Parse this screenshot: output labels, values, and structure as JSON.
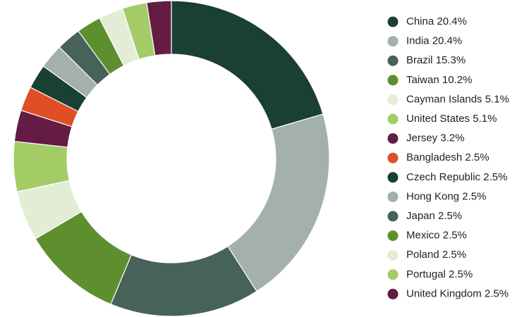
{
  "chart_data": {
    "type": "donut",
    "categories": [
      "China",
      "India",
      "Brazil",
      "Taiwan",
      "Cayman Islands",
      "United States",
      "Jersey",
      "Bangladesh",
      "Czech Republic",
      "Hong Kong",
      "Japan",
      "Mexico",
      "Poland",
      "Portugal",
      "United Kingdom"
    ],
    "values": [
      20.4,
      20.4,
      15.3,
      10.2,
      5.1,
      5.1,
      3.2,
      2.5,
      2.5,
      2.5,
      2.5,
      2.5,
      2.5,
      2.5,
      2.5
    ],
    "value_labels": [
      "20.4%",
      "20.4%",
      "15.3%",
      "10.2%",
      "5.1%",
      "5.1%",
      "3.2%",
      "2.5%",
      "2.5%",
      "2.5%",
      "2.5%",
      "2.5%",
      "2.5%",
      "2.5%",
      "2.5%"
    ],
    "colors": [
      "#1a4033",
      "#a3b0ab",
      "#47625a",
      "#5e8f2f",
      "#e3edd6",
      "#a3cc66",
      "#641c44",
      "#e04e25",
      "#1a4033",
      "#a3b0ab",
      "#47625a",
      "#5e8f2f",
      "#e3edd6",
      "#a3cc66",
      "#641c44"
    ],
    "legend": "right"
  }
}
